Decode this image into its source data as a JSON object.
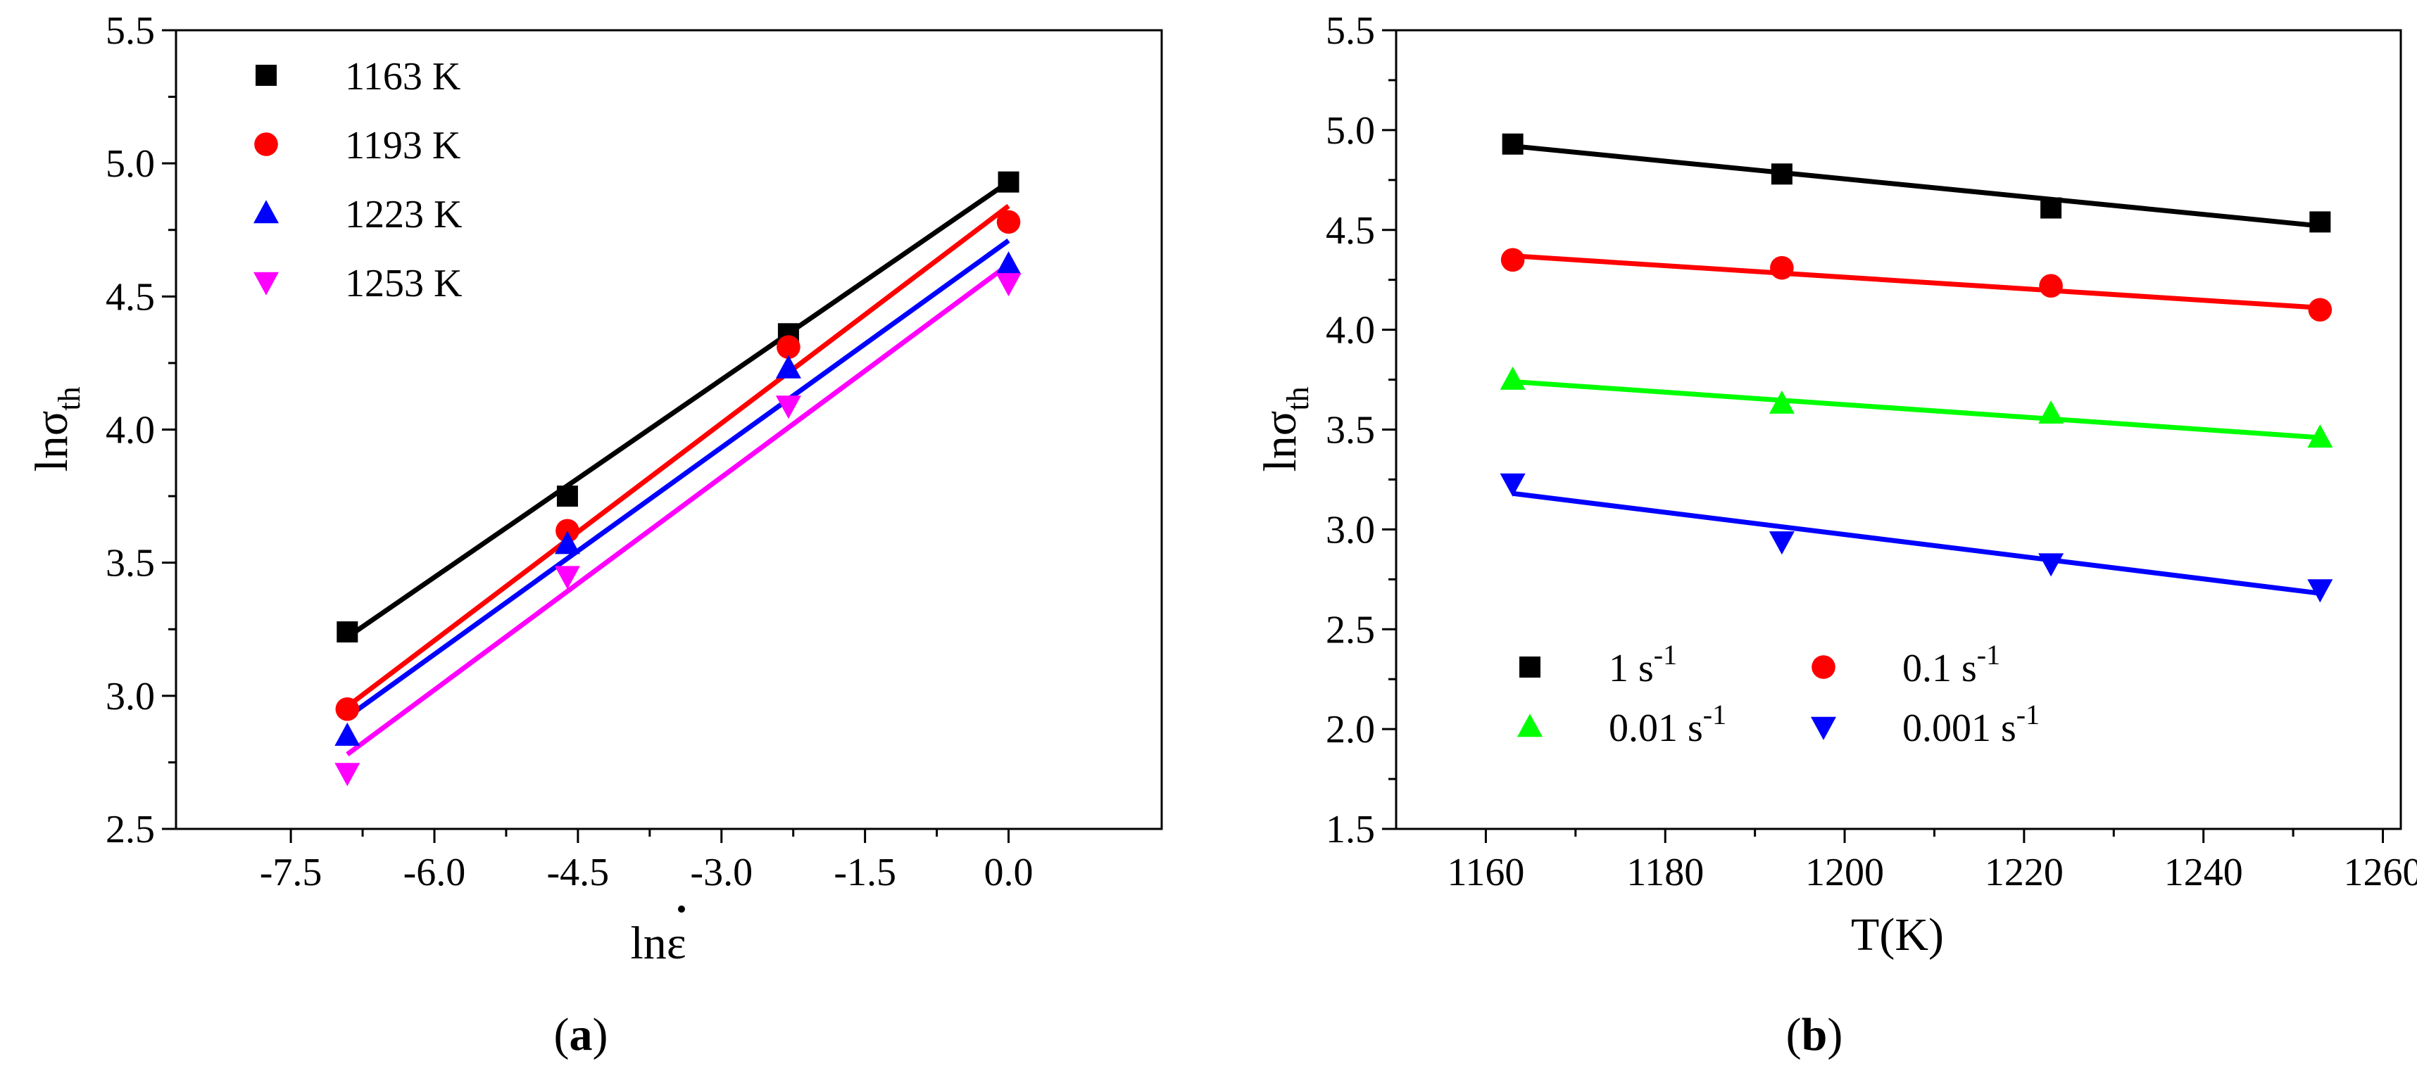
{
  "chart_data": [
    {
      "type": "scatter",
      "panel_label": {
        "open": "(",
        "letter": "a",
        "close": ")"
      },
      "xlabel": {
        "main": "ln",
        "symbol": "ε",
        "dot": "•"
      },
      "ylabel": {
        "main": "lnσ",
        "sub": "th"
      },
      "xlim": [
        -8.7,
        1.6
      ],
      "ylim": [
        2.5,
        5.5
      ],
      "xticks": [
        {
          "v": -7.5,
          "label": "-7.5"
        },
        {
          "v": -6.0,
          "label": "-6.0"
        },
        {
          "v": -4.5,
          "label": "-4.5"
        },
        {
          "v": -3.0,
          "label": "-3.0"
        },
        {
          "v": -1.5,
          "label": "-1.5"
        },
        {
          "v": 0.0,
          "label": "0.0"
        }
      ],
      "yticks": [
        {
          "v": 2.5,
          "label": "2.5"
        },
        {
          "v": 3.0,
          "label": "3.0"
        },
        {
          "v": 3.5,
          "label": "3.5"
        },
        {
          "v": 4.0,
          "label": "4.0"
        },
        {
          "v": 4.5,
          "label": "4.5"
        },
        {
          "v": 5.0,
          "label": "5.0"
        },
        {
          "v": 5.5,
          "label": "5.5"
        }
      ],
      "x": [
        -6.91,
        -4.61,
        -2.3,
        0.0
      ],
      "legend_position": "top-left",
      "series": [
        {
          "name": "1163 K",
          "marker": "square",
          "color": "#000000",
          "values": [
            3.24,
            3.75,
            4.36,
            4.93
          ],
          "fit": [
            [
              -6.91,
              3.22
            ],
            [
              0.0,
              4.93
            ]
          ]
        },
        {
          "name": "1193 K",
          "marker": "circle",
          "color": "#ff0000",
          "values": [
            2.95,
            3.62,
            4.31,
            4.78
          ],
          "fit": [
            [
              -6.91,
              2.96
            ],
            [
              0.0,
              4.84
            ]
          ]
        },
        {
          "name": "1223 K",
          "marker": "triangle-up",
          "color": "#0000ff",
          "values": [
            2.85,
            3.57,
            4.23,
            4.62
          ],
          "fit": [
            [
              -6.91,
              2.92
            ],
            [
              0.0,
              4.71
            ]
          ]
        },
        {
          "name": "1253 K",
          "marker": "triangle-down",
          "color": "#ff00ff",
          "values": [
            2.71,
            3.45,
            4.09,
            4.55
          ],
          "fit": [
            [
              -6.91,
              2.78
            ],
            [
              0.0,
              4.62
            ]
          ]
        }
      ]
    },
    {
      "type": "scatter",
      "panel_label": {
        "open": "(",
        "letter": "b",
        "close": ")"
      },
      "xlabel": {
        "main": "T(K)"
      },
      "ylabel": {
        "main": "lnσ",
        "sub": "th"
      },
      "xlim": [
        1150,
        1262
      ],
      "ylim": [
        1.5,
        5.5
      ],
      "xticks": [
        {
          "v": 1160,
          "label": "1160"
        },
        {
          "v": 1180,
          "label": "1180"
        },
        {
          "v": 1200,
          "label": "1200"
        },
        {
          "v": 1220,
          "label": "1220"
        },
        {
          "v": 1240,
          "label": "1240"
        },
        {
          "v": 1260,
          "label": "1260"
        }
      ],
      "yticks": [
        {
          "v": 1.5,
          "label": "1.5"
        },
        {
          "v": 2.0,
          "label": "2.0"
        },
        {
          "v": 2.5,
          "label": "2.5"
        },
        {
          "v": 3.0,
          "label": "3.0"
        },
        {
          "v": 3.5,
          "label": "3.5"
        },
        {
          "v": 4.0,
          "label": "4.0"
        },
        {
          "v": 4.5,
          "label": "4.5"
        },
        {
          "v": 5.0,
          "label": "5.0"
        },
        {
          "v": 5.5,
          "label": "5.5"
        }
      ],
      "x": [
        1163,
        1193,
        1223,
        1253
      ],
      "legend_position": "bottom-left",
      "series": [
        {
          "name": "1 s",
          "sup": "-1",
          "marker": "square",
          "color": "#000000",
          "values": [
            4.93,
            4.78,
            4.61,
            4.54
          ],
          "fit": [
            [
              1163,
              4.92
            ],
            [
              1253,
              4.52
            ]
          ]
        },
        {
          "name": "0.1 s",
          "sup": "-1",
          "marker": "circle",
          "color": "#ff0000",
          "values": [
            4.35,
            4.31,
            4.22,
            4.1
          ],
          "fit": [
            [
              1163,
              4.37
            ],
            [
              1253,
              4.11
            ]
          ]
        },
        {
          "name": "0.01 s",
          "sup": "-1",
          "marker": "triangle-up",
          "color": "#00ff00",
          "values": [
            3.75,
            3.63,
            3.58,
            3.46
          ],
          "fit": [
            [
              1163,
              3.74
            ],
            [
              1253,
              3.46
            ]
          ]
        },
        {
          "name": "0.001 s",
          "sup": "-1",
          "marker": "triangle-down",
          "color": "#0000ff",
          "values": [
            3.23,
            2.94,
            2.83,
            2.7
          ],
          "fit": [
            [
              1163,
              3.18
            ],
            [
              1253,
              2.68
            ]
          ]
        }
      ]
    }
  ]
}
